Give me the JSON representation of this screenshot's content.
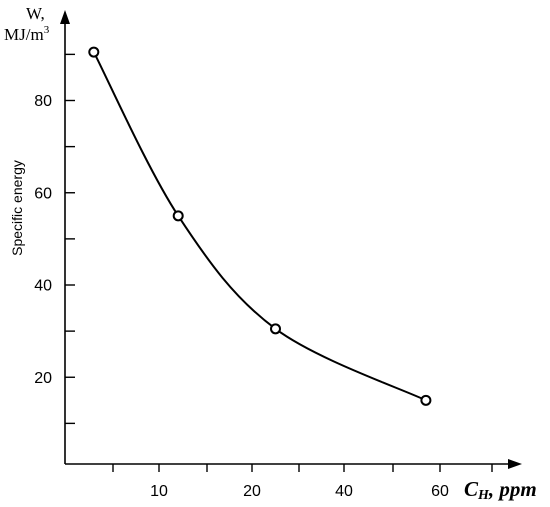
{
  "chart_data": {
    "type": "line",
    "y_unit_line1": "W,",
    "y_unit_line2": "MJ/m",
    "y_unit_sup": "3",
    "ylabel": "Specific energy",
    "xlabel_main": "C",
    "xlabel_sub": "H",
    "xlabel_rest": ", ppm",
    "x_ticks": [
      {
        "value": 5,
        "label": ""
      },
      {
        "value": 10,
        "label": "10"
      },
      {
        "value": 15,
        "label": ""
      },
      {
        "value": 20,
        "label": "20"
      },
      {
        "value": 30,
        "label": ""
      },
      {
        "value": 40,
        "label": "40"
      },
      {
        "value": 50,
        "label": ""
      },
      {
        "value": 60,
        "label": "60"
      },
      {
        "value": 70,
        "label": ""
      }
    ],
    "y_ticks": [
      {
        "value": 10,
        "label": ""
      },
      {
        "value": 20,
        "label": "20"
      },
      {
        "value": 30,
        "label": ""
      },
      {
        "value": 40,
        "label": "40"
      },
      {
        "value": 50,
        "label": ""
      },
      {
        "value": 60,
        "label": "60"
      },
      {
        "value": 70,
        "label": ""
      },
      {
        "value": 80,
        "label": "80"
      },
      {
        "value": 90,
        "label": ""
      }
    ],
    "series": [
      {
        "points": [
          {
            "x": 3,
            "y": 90.5
          },
          {
            "x": 12,
            "y": 55
          },
          {
            "x": 25,
            "y": 30.5
          },
          {
            "x": 57,
            "y": 15
          }
        ]
      }
    ],
    "colors": {
      "line": "#000000",
      "marker_fill": "#ffffff"
    }
  }
}
